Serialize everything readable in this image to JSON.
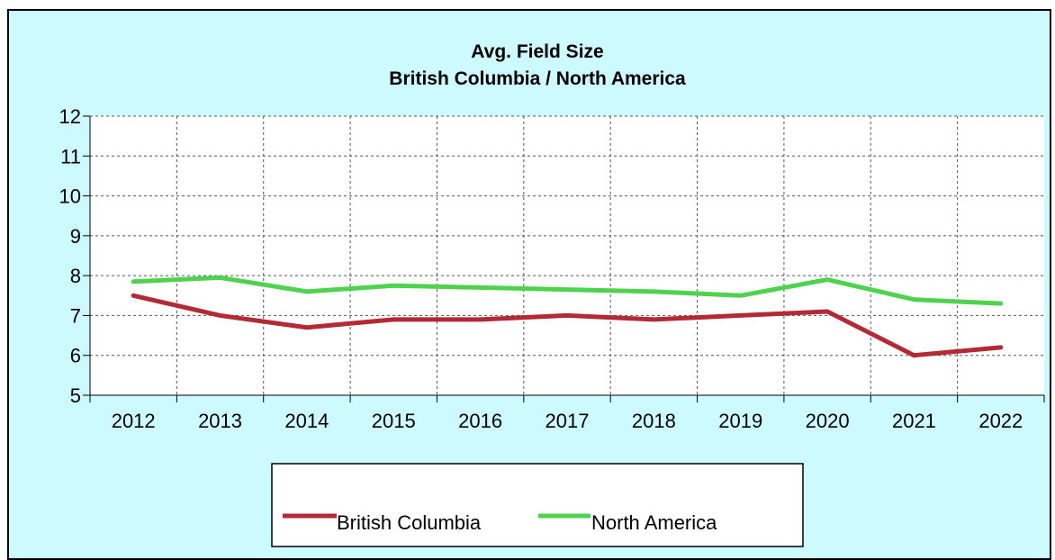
{
  "chart_data": {
    "type": "line",
    "title": "Avg. Field Size",
    "subtitle": "British Columbia / North America",
    "xlabel": "",
    "ylabel": "",
    "categories": [
      "2012",
      "2013",
      "2014",
      "2015",
      "2016",
      "2017",
      "2018",
      "2019",
      "2020",
      "2021",
      "2022"
    ],
    "ylim": [
      5,
      12
    ],
    "yticks": [
      5,
      6,
      7,
      8,
      9,
      10,
      11,
      12
    ],
    "grid": true,
    "legend_position": "bottom",
    "series": [
      {
        "name": "British Columbia",
        "color": "#b22a35",
        "values": [
          7.5,
          7.0,
          6.7,
          6.9,
          6.9,
          7.0,
          6.9,
          7.0,
          7.1,
          6.0,
          6.2
        ]
      },
      {
        "name": "North America",
        "color": "#4fd24f",
        "values": [
          7.85,
          7.95,
          7.6,
          7.75,
          7.7,
          7.65,
          7.6,
          7.5,
          7.9,
          7.4,
          7.3
        ]
      }
    ],
    "background_color": "#ccfaff",
    "plot_color": "#ffffff"
  }
}
